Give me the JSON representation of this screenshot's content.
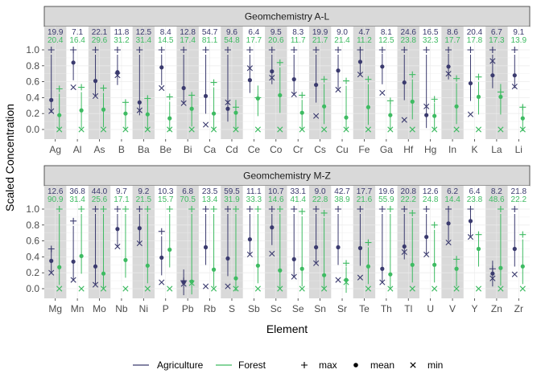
{
  "chart_data": {
    "type": "scatter",
    "xlabel": "Element",
    "ylabel": "Scaled Concentration",
    "ylim": [
      -0.1,
      1.1
    ],
    "yticks": [
      0.0,
      0.2,
      0.4,
      0.6,
      0.8,
      1.0
    ],
    "ytick_labels": [
      "0.0",
      "0.2",
      "0.4",
      "0.6",
      "0.8",
      "1.0"
    ],
    "colors": {
      "Agriculture": "#3a3a6e",
      "Forest": "#3ebb62"
    },
    "legend": {
      "series": [
        "Agriculture",
        "Forest"
      ],
      "stats": [
        {
          "label": "max",
          "symbol": "+"
        },
        {
          "label": "mean",
          "symbol": "●"
        },
        {
          "label": "min",
          "symbol": "×"
        }
      ]
    },
    "panels": [
      {
        "title": "Geomchemistry A-L",
        "categories": [
          "Ag",
          "Al",
          "As",
          "B",
          "Ba",
          "Be",
          "Bi",
          "Ca",
          "Cd",
          "Ce",
          "Co",
          "Cr",
          "Cs",
          "Cu",
          "Fe",
          "Ga",
          "Hf",
          "Hg",
          "In",
          "K",
          "La",
          "Li"
        ],
        "max_labels": {
          "Agriculture": [
            "19.9",
            "7.1",
            "22.1",
            "11.8",
            "12.5",
            "8.4",
            "12.8",
            "54.7",
            "9.6",
            "6.4",
            "9.5",
            "8.3",
            "19.9",
            "9.0",
            "4.7",
            "8.1",
            "24.6",
            "16.5",
            "8.6",
            "20.4",
            "6.7",
            "9.1"
          ],
          "Forest": [
            "20.4",
            "16.4",
            "29.6",
            "31.2",
            "31.4",
            "14.5",
            "17.4",
            "81.1",
            "54.8",
            "17.7",
            "20.6",
            "11.7",
            "21.7",
            "21.4",
            "11.2",
            "12.5",
            "23.8",
            "32.3",
            "17.7",
            "17.8",
            "17.3",
            "13.9"
          ]
        },
        "series": [
          {
            "name": "Agriculture",
            "max": [
              1,
              1,
              1,
              1,
              1,
              1,
              1,
              1,
              1,
              1,
              1,
              1,
              1,
              1,
              1,
              1,
              1,
              1,
              1,
              1,
              1,
              1
            ],
            "mean": [
              0.37,
              0.84,
              0.61,
              0.72,
              0.34,
              0.78,
              0.52,
              0.42,
              0.26,
              0.62,
              0.73,
              0.63,
              0.56,
              0.74,
              0.85,
              0.79,
              0.59,
              0.18,
              0.79,
              0.58,
              0.68,
              0.68
            ],
            "min": [
              0.23,
              0.53,
              0.42,
              0.68,
              0.24,
              0.52,
              0.33,
              0.06,
              0.34,
              0.77,
              0.65,
              0.44,
              0.17,
              0.5,
              0.69,
              0.46,
              0.12,
              0.29,
              0.7,
              0.19,
              0.86,
              0.54
            ]
          },
          {
            "name": "Forest",
            "max": [
              0.51,
              0.53,
              0.52,
              0.34,
              0.39,
              0.41,
              0.43,
              0.59,
              0.28,
              0.4,
              0.84,
              0.43,
              0.63,
              0.61,
              0.63,
              0.36,
              0.69,
              0.38,
              0.64,
              0.66,
              0.47,
              0.28
            ],
            "mean": [
              0.18,
              0.24,
              0.25,
              0.2,
              0.19,
              0.14,
              0.26,
              0.2,
              0.21,
              0.39,
              0.43,
              0.21,
              0.29,
              0.15,
              0.28,
              0.18,
              0.35,
              0.17,
              0.29,
              0.41,
              0.41,
              0.14
            ],
            "min": [
              0,
              0,
              0,
              0,
              0,
              0,
              0,
              0,
              0,
              0,
              0,
              0,
              0,
              0,
              0,
              0,
              0,
              0,
              0,
              0,
              0,
              0
            ]
          }
        ]
      },
      {
        "title": "Geomchemistry M-Z",
        "categories": [
          "Mg",
          "Mn",
          "Mo",
          "Nb",
          "Ni",
          "P",
          "Pb",
          "Rb",
          "S",
          "Sb",
          "Sc",
          "Se",
          "Sn",
          "Sr",
          "Te",
          "Th",
          "Tl",
          "U",
          "V",
          "Y",
          "Zn",
          "Zr"
        ],
        "max_labels": {
          "Agriculture": [
            "12.6",
            "36.8",
            "44.0",
            "9.7",
            "9.2",
            "10.3",
            "6.8",
            "23.5",
            "59.5",
            "11.1",
            "10.7",
            "33.1",
            "9.0",
            "42.7",
            "17.7",
            "19.6",
            "20.8",
            "12.6",
            "6.2",
            "6.4",
            "8.2",
            "21.8"
          ],
          "Forest": [
            "90.9",
            "31.4",
            "25.6",
            "17.1",
            "21.5",
            "15.7",
            "70.5",
            "13.4",
            "31.9",
            "33.3",
            "14.6",
            "41.4",
            "22.8",
            "38.9",
            "21.6",
            "55.9",
            "22.2",
            "24.8",
            "14.4",
            "23.8",
            "48.6",
            "22.2"
          ]
        },
        "series": [
          {
            "name": "Agriculture",
            "max": [
              0.5,
              0.85,
              1,
              1,
              1,
              0.72,
              0.1,
              1,
              1,
              1,
              1,
              1,
              1,
              1,
              1,
              1,
              1,
              1,
              1,
              1,
              0.25,
              1
            ],
            "mean": [
              0.35,
              0.34,
              0.28,
              0.75,
              0.76,
              0.39,
              0.08,
              0.52,
              0.38,
              0.62,
              0.77,
              0.37,
              0.52,
              0.52,
              0.51,
              0.25,
              0.53,
              0.65,
              0.82,
              0.85,
              0.19,
              0.5
            ],
            "min": [
              0.2,
              0.11,
              0.05,
              0.53,
              0.57,
              0.08,
              0.06,
              0.03,
              0.03,
              0.43,
              0.44,
              0.15,
              0.32,
              0.11,
              0.14,
              0.08,
              0.46,
              0.43,
              0.58,
              0.65,
              0.13,
              0.18
            ]
          },
          {
            "name": "Forest",
            "max": [
              1,
              1,
              1,
              1,
              1,
              1,
              1,
              1,
              1,
              1,
              1,
              0.97,
              0.95,
              0.32,
              0.58,
              1,
              0.95,
              0.8,
              0.37,
              0.68,
              1,
              0.68
            ],
            "mean": [
              0.27,
              0.41,
              0.19,
              0.36,
              0.29,
              0.49,
              0.09,
              0.24,
              0.13,
              0.29,
              0.23,
              0.25,
              0.17,
              0.11,
              0.28,
              0.18,
              0.3,
              0.3,
              0.25,
              0.5,
              0.26,
              0.28
            ],
            "min": [
              0,
              0,
              0,
              0,
              0,
              0,
              0.07,
              0,
              0,
              0,
              0,
              0,
              0,
              0.08,
              0,
              0,
              0,
              0,
              0,
              0,
              0,
              0
            ]
          }
        ]
      }
    ]
  }
}
